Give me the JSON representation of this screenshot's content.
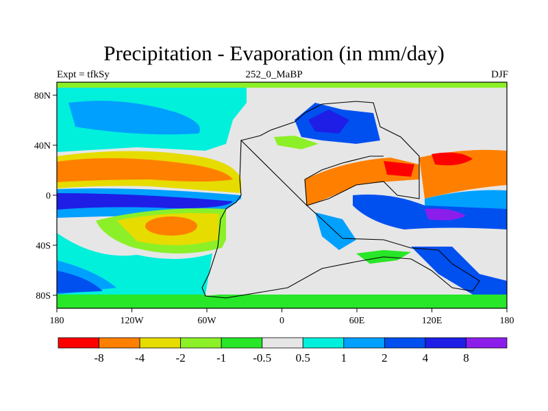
{
  "title": "Precipitation - Evaporation (in mm/day)",
  "subtitle_left": "Expt = tfkSy",
  "subtitle_center": "252_0_MaBP",
  "subtitle_right": "DJF",
  "map": {
    "lon_ticks": [
      "180",
      "120W",
      "60W",
      "0",
      "60E",
      "120E",
      "180"
    ],
    "lat_ticks": [
      "80N",
      "40N",
      "0",
      "40S",
      "80S"
    ]
  },
  "colorbar": {
    "colors": [
      "#ff0000",
      "#ff8000",
      "#e6dc00",
      "#8cf028",
      "#28e628",
      "#e6e6e6",
      "#00f0dc",
      "#00a0ff",
      "#0050f0",
      "#1e1ee6",
      "#8c1eeb"
    ],
    "labels": [
      "-8",
      "-4",
      "-2",
      "-1",
      "-0.5",
      "0.5",
      "1",
      "2",
      "4",
      "8"
    ]
  }
}
